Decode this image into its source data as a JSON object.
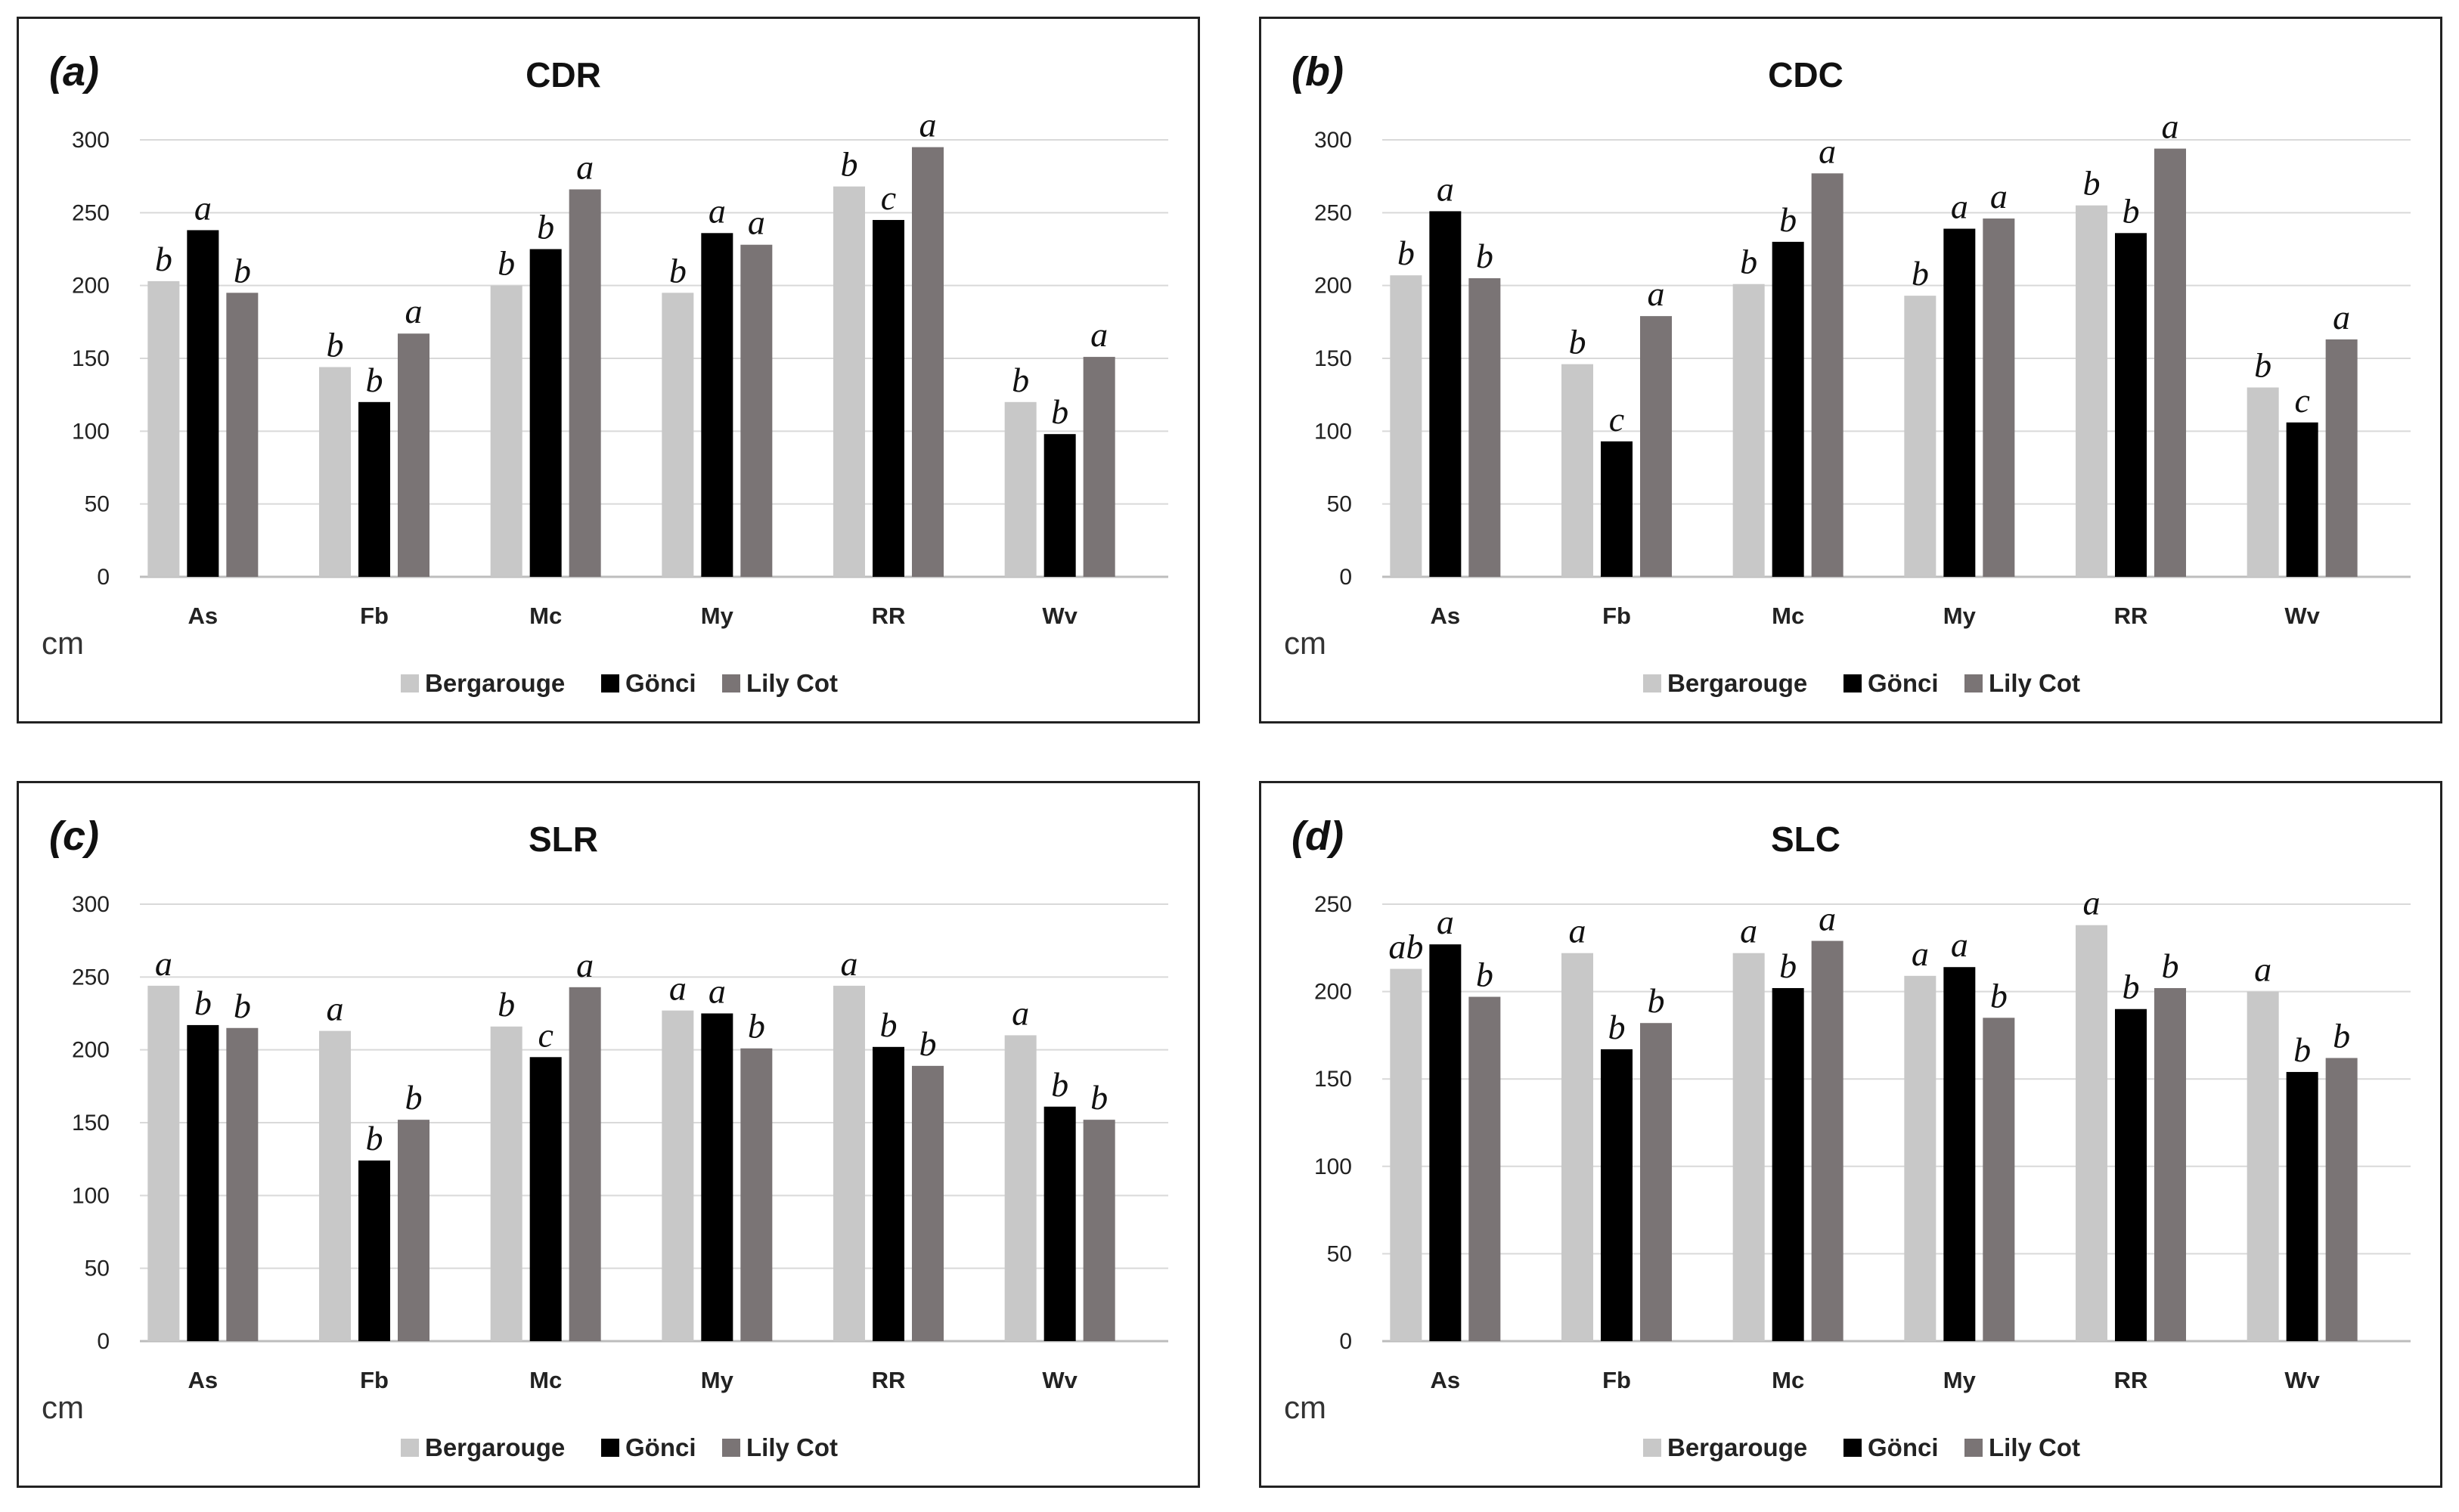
{
  "chart_data": [
    {
      "type": "bar",
      "panel_label": "(a)",
      "title": "CDR",
      "ylabel": "cm",
      "ylim": [
        0,
        300
      ],
      "yticks": [
        0,
        50,
        100,
        150,
        200,
        250,
        300
      ],
      "categories": [
        "As",
        "Fb",
        "Mc",
        "My",
        "RR",
        "Wv"
      ],
      "series": [
        {
          "name": "Bergarouge",
          "color": "#c8c8c8",
          "values": [
            203,
            144,
            200,
            195,
            268,
            120
          ],
          "labels": [
            "b",
            "b",
            "b",
            "b",
            "b",
            "b"
          ]
        },
        {
          "name": "Gönci",
          "color": "#000000",
          "values": [
            238,
            120,
            225,
            236,
            245,
            98
          ],
          "labels": [
            "a",
            "b",
            "b",
            "a",
            "c",
            "b"
          ]
        },
        {
          "name": "Lily Cot",
          "color": "#7a7475",
          "values": [
            195,
            167,
            266,
            228,
            295,
            151
          ],
          "labels": [
            "b",
            "a",
            "a",
            "a",
            "a",
            "a"
          ]
        }
      ]
    },
    {
      "type": "bar",
      "panel_label": "(b)",
      "title": "CDC",
      "ylabel": "cm",
      "ylim": [
        0,
        300
      ],
      "yticks": [
        0,
        50,
        100,
        150,
        200,
        250,
        300
      ],
      "categories": [
        "As",
        "Fb",
        "Mc",
        "My",
        "RR",
        "Wv"
      ],
      "series": [
        {
          "name": "Bergarouge",
          "color": "#c8c8c8",
          "values": [
            207,
            146,
            201,
            193,
            255,
            130
          ],
          "labels": [
            "b",
            "b",
            "b",
            "b",
            "b",
            "b"
          ]
        },
        {
          "name": "Gönci",
          "color": "#000000",
          "values": [
            251,
            93,
            230,
            239,
            236,
            106
          ],
          "labels": [
            "a",
            "c",
            "b",
            "a",
            "b",
            "c"
          ]
        },
        {
          "name": "Lily Cot",
          "color": "#7a7475",
          "values": [
            205,
            179,
            277,
            246,
            294,
            163
          ],
          "labels": [
            "b",
            "a",
            "a",
            "a",
            "a",
            "a"
          ]
        }
      ]
    },
    {
      "type": "bar",
      "panel_label": "(c)",
      "title": "SLR",
      "ylabel": "cm",
      "ylim": [
        0,
        300
      ],
      "yticks": [
        0,
        50,
        100,
        150,
        200,
        250,
        300
      ],
      "categories": [
        "As",
        "Fb",
        "Mc",
        "My",
        "RR",
        "Wv"
      ],
      "series": [
        {
          "name": "Bergarouge",
          "color": "#c8c8c8",
          "values": [
            244,
            213,
            216,
            227,
            244,
            210
          ],
          "labels": [
            "a",
            "a",
            "b",
            "a",
            "a",
            "a"
          ]
        },
        {
          "name": "Gönci",
          "color": "#000000",
          "values": [
            217,
            124,
            195,
            225,
            202,
            161
          ],
          "labels": [
            "b",
            "b",
            "c",
            "a",
            "b",
            "b"
          ]
        },
        {
          "name": "Lily Cot",
          "color": "#7a7475",
          "values": [
            215,
            152,
            243,
            201,
            189,
            152
          ],
          "labels": [
            "b",
            "b",
            "a",
            "b",
            "b",
            "b"
          ]
        }
      ]
    },
    {
      "type": "bar",
      "panel_label": "(d)",
      "title": "SLC",
      "ylabel": "cm",
      "ylim": [
        0,
        250
      ],
      "yticks": [
        0,
        50,
        100,
        150,
        200,
        250
      ],
      "categories": [
        "As",
        "Fb",
        "Mc",
        "My",
        "RR",
        "Wv"
      ],
      "series": [
        {
          "name": "Bergarouge",
          "color": "#c8c8c8",
          "values": [
            213,
            222,
            222,
            209,
            238,
            200
          ],
          "labels": [
            "ab",
            "a",
            "a",
            "a",
            "a",
            "a"
          ]
        },
        {
          "name": "Gönci",
          "color": "#000000",
          "values": [
            227,
            167,
            202,
            214,
            190,
            154
          ],
          "labels": [
            "a",
            "b",
            "b",
            "a",
            "b",
            "b"
          ]
        },
        {
          "name": "Lily Cot",
          "color": "#7a7475",
          "values": [
            197,
            182,
            229,
            185,
            202,
            162
          ],
          "labels": [
            "b",
            "b",
            "a",
            "b",
            "b",
            "b"
          ]
        }
      ]
    }
  ]
}
